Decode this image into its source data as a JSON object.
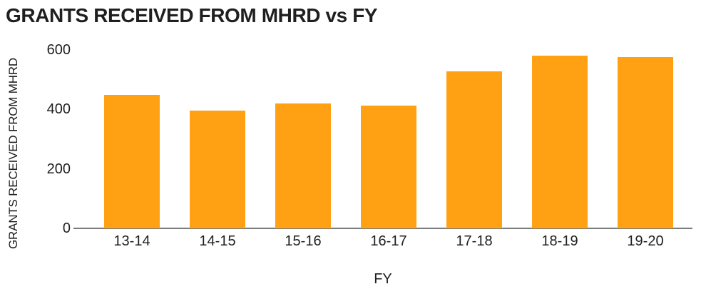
{
  "chart_data": {
    "type": "bar",
    "title": "GRANTS RECEIVED FROM MHRD vs FY",
    "categories": [
      "13-14",
      "14-15",
      "15-16",
      "16-17",
      "17-18",
      "18-19",
      "19-20"
    ],
    "values": [
      449,
      395,
      421,
      412,
      528,
      582,
      577
    ],
    "xlabel": "FY",
    "ylabel": "GRANTS RECEIVED FROM MHRD",
    "ylim": [
      0,
      600
    ],
    "yticks": [
      0,
      200,
      400,
      600
    ],
    "grid": false,
    "legend": "none",
    "bar_color": "#FFA113",
    "axis_line_color": "#7b7b7b",
    "text_color": "#1f1f1f"
  }
}
